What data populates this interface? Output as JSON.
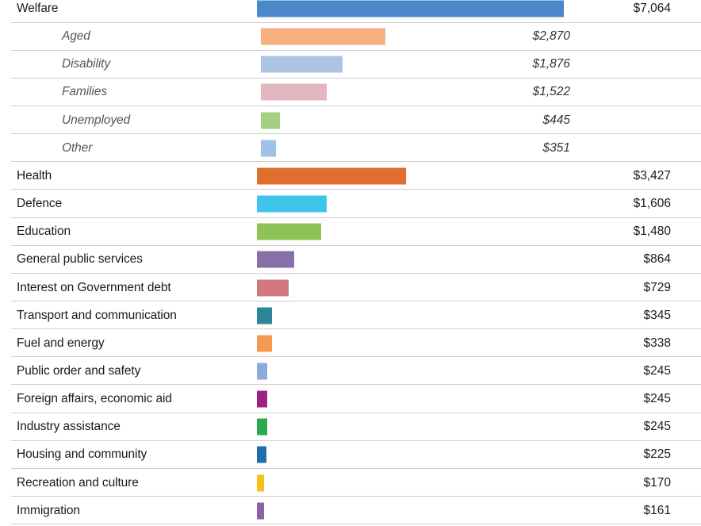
{
  "chart_data": {
    "type": "bar",
    "orientation": "horizontal",
    "title": "",
    "xlabel": "",
    "ylabel": "",
    "unit": "$ (millions)",
    "xlim": [
      0,
      7064
    ],
    "rows": [
      {
        "label": "Welfare",
        "value": 7064,
        "value_label": "$7,064",
        "level": "main",
        "color": "#4a88c9"
      },
      {
        "label": "Aged",
        "value": 2870,
        "value_label": "$2,870",
        "level": "sub",
        "color": "#f5b07e"
      },
      {
        "label": "Disability",
        "value": 1876,
        "value_label": "$1,876",
        "level": "sub",
        "color": "#abc4e4"
      },
      {
        "label": "Families",
        "value": 1522,
        "value_label": "$1,522",
        "level": "sub",
        "color": "#e3b7be"
      },
      {
        "label": "Unemployed",
        "value": 445,
        "value_label": "$445",
        "level": "sub",
        "color": "#a6cf80"
      },
      {
        "label": "Other",
        "value": 351,
        "value_label": "$351",
        "level": "sub",
        "color": "#9fc2e6"
      },
      {
        "label": "Health",
        "value": 3427,
        "value_label": "$3,427",
        "level": "main",
        "color": "#e06e2c"
      },
      {
        "label": "Defence",
        "value": 1606,
        "value_label": "$1,606",
        "level": "main",
        "color": "#3fc5eb"
      },
      {
        "label": "Education",
        "value": 1480,
        "value_label": "$1,480",
        "level": "main",
        "color": "#8ec455"
      },
      {
        "label": "General public services",
        "value": 864,
        "value_label": "$864",
        "level": "main",
        "color": "#8670a8"
      },
      {
        "label": "Interest on Government debt",
        "value": 729,
        "value_label": "$729",
        "level": "main",
        "color": "#d37880"
      },
      {
        "label": "Transport and communication",
        "value": 345,
        "value_label": "$345",
        "level": "main",
        "color": "#2b8797"
      },
      {
        "label": "Fuel and energy",
        "value": 338,
        "value_label": "$338",
        "level": "main",
        "color": "#f39b54"
      },
      {
        "label": "Public order and safety",
        "value": 245,
        "value_label": "$245",
        "level": "main",
        "color": "#8babd9"
      },
      {
        "label": "Foreign affairs, economic aid",
        "value": 245,
        "value_label": "$245",
        "level": "main",
        "color": "#9c2180"
      },
      {
        "label": "Industry assistance",
        "value": 245,
        "value_label": "$245",
        "level": "main",
        "color": "#2bab4e"
      },
      {
        "label": "Housing and community",
        "value": 225,
        "value_label": "$225",
        "level": "main",
        "color": "#1f6eae"
      },
      {
        "label": "Recreation and culture",
        "value": 170,
        "value_label": "$170",
        "level": "main",
        "color": "#f6bf1a"
      },
      {
        "label": "Immigration",
        "value": 161,
        "value_label": "$161",
        "level": "main",
        "color": "#8f5fa8"
      }
    ]
  }
}
